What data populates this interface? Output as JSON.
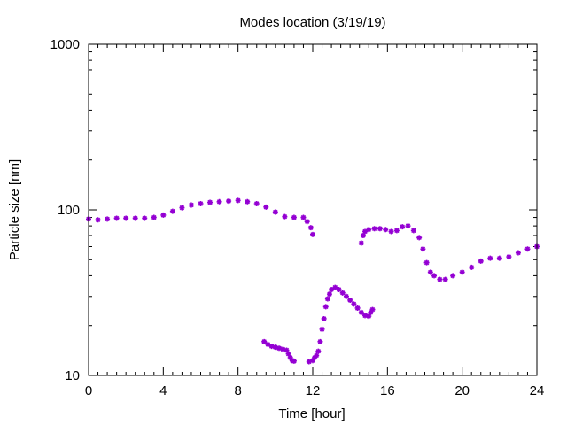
{
  "chart_data": {
    "type": "scatter",
    "title": "Modes location (3/19/19)",
    "xlabel": "Time [hour]",
    "ylabel": "Particle size [nm]",
    "xlim": [
      0,
      24
    ],
    "ylim": [
      10,
      1000
    ],
    "yscale": "log",
    "x_ticks": [
      0,
      4,
      8,
      12,
      16,
      20,
      24
    ],
    "x_tick_labels": [
      "0",
      "4",
      "8",
      "12",
      "16",
      "20",
      "24"
    ],
    "y_ticks": [
      10,
      100,
      1000
    ],
    "y_tick_labels": [
      "10",
      "100",
      "1000"
    ],
    "grid": false,
    "legend": "none",
    "marker": "asterisk",
    "series_color": "#9400D3",
    "series": [
      {
        "points": [
          [
            0.0,
            88
          ],
          [
            0.5,
            87
          ],
          [
            1.0,
            88
          ],
          [
            1.5,
            89
          ],
          [
            2.0,
            89
          ],
          [
            2.5,
            89
          ],
          [
            3.0,
            89
          ],
          [
            3.5,
            90
          ],
          [
            4.0,
            93
          ],
          [
            4.5,
            98
          ],
          [
            5.0,
            103
          ],
          [
            5.5,
            107
          ],
          [
            6.0,
            109
          ],
          [
            6.5,
            111
          ],
          [
            7.0,
            112
          ],
          [
            7.5,
            113
          ],
          [
            8.0,
            114
          ],
          [
            8.5,
            112
          ],
          [
            9.0,
            109
          ],
          [
            9.5,
            104
          ],
          [
            10.0,
            97
          ],
          [
            10.5,
            91
          ],
          [
            11.0,
            90
          ],
          [
            11.5,
            90
          ],
          [
            11.7,
            85
          ],
          [
            11.9,
            78
          ],
          [
            12.0,
            71
          ]
        ]
      },
      {
        "points": [
          [
            9.4,
            16
          ],
          [
            9.6,
            15.4
          ],
          [
            9.8,
            15
          ],
          [
            10.0,
            14.8
          ],
          [
            10.2,
            14.6
          ],
          [
            10.4,
            14.4
          ],
          [
            10.6,
            14.2
          ],
          [
            10.7,
            13.5
          ],
          [
            10.8,
            12.8
          ],
          [
            10.9,
            12.3
          ],
          [
            11.0,
            12.2
          ]
        ]
      },
      {
        "points": [
          [
            11.8,
            12.1
          ],
          [
            12.0,
            12.3
          ],
          [
            12.1,
            12.8
          ],
          [
            12.2,
            13.2
          ],
          [
            12.3,
            14
          ],
          [
            12.4,
            16
          ],
          [
            12.5,
            19
          ],
          [
            12.6,
            22
          ],
          [
            12.7,
            26
          ],
          [
            12.8,
            29
          ],
          [
            12.9,
            31
          ],
          [
            13.0,
            33
          ],
          [
            13.2,
            34
          ],
          [
            13.4,
            33
          ],
          [
            13.6,
            31.5
          ],
          [
            13.8,
            30
          ],
          [
            14.0,
            28.5
          ],
          [
            14.2,
            27
          ],
          [
            14.4,
            25.5
          ],
          [
            14.6,
            24
          ],
          [
            14.8,
            23
          ],
          [
            15.0,
            22.8
          ],
          [
            15.1,
            24
          ],
          [
            15.2,
            25
          ]
        ]
      },
      {
        "points": [
          [
            14.6,
            63
          ],
          [
            14.7,
            70
          ],
          [
            14.8,
            74
          ],
          [
            15.0,
            76
          ],
          [
            15.3,
            77
          ],
          [
            15.6,
            77
          ],
          [
            15.9,
            76
          ],
          [
            16.2,
            74
          ],
          [
            16.5,
            75
          ],
          [
            16.8,
            79
          ],
          [
            17.1,
            80
          ],
          [
            17.4,
            75
          ],
          [
            17.7,
            68
          ],
          [
            17.9,
            58
          ],
          [
            18.1,
            48
          ],
          [
            18.3,
            42
          ],
          [
            18.5,
            40
          ],
          [
            18.8,
            38
          ],
          [
            19.1,
            38
          ],
          [
            19.5,
            40
          ],
          [
            20.0,
            42
          ],
          [
            20.5,
            45
          ],
          [
            21.0,
            49
          ],
          [
            21.5,
            51
          ],
          [
            22.0,
            51
          ],
          [
            22.5,
            52
          ],
          [
            23.0,
            55
          ],
          [
            23.5,
            58
          ],
          [
            24.0,
            60
          ]
        ]
      }
    ]
  }
}
